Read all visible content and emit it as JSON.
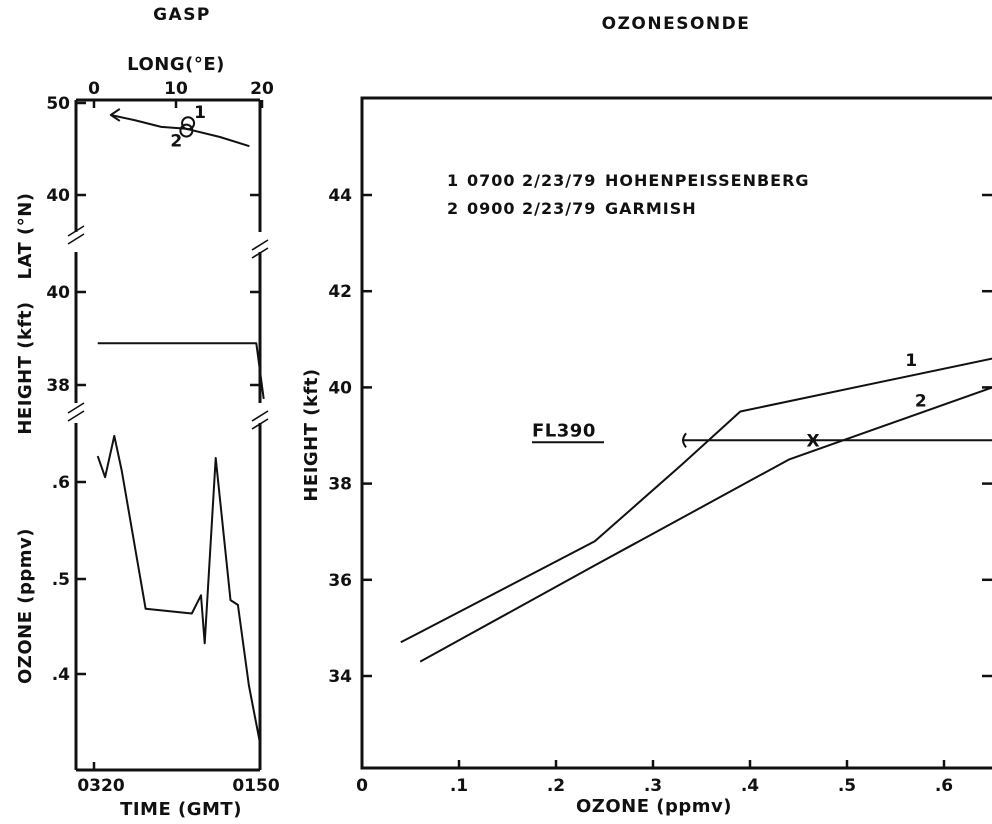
{
  "chart_data": [
    {
      "panel": "gasp",
      "title": "GASP",
      "type": "line",
      "subplots": [
        {
          "name": "position",
          "xlabel": "LONG(°E)",
          "ylabel": "LAT (°N)",
          "xlim": [
            0,
            20
          ],
          "ylim": [
            40,
            50
          ],
          "xticks": [
            "0",
            "10",
            "20"
          ],
          "yticks": [
            "50",
            "40"
          ],
          "track": {
            "x": [
              18.5,
              15,
              11,
              8,
              5,
              2
            ],
            "y": [
              45.3,
              46.3,
              47.2,
              47.4,
              48.1,
              48.7
            ]
          },
          "stations": [
            {
              "label": "1",
              "lon": 11.2,
              "lat": 47.8
            },
            {
              "label": "2",
              "lon": 11.0,
              "lat": 47.0
            }
          ]
        },
        {
          "name": "height",
          "ylabel": "HEIGHT (kft)",
          "ylim": [
            37.5,
            41
          ],
          "yticks": [
            "40",
            "38"
          ],
          "series": [
            {
              "x": [
                0.2,
                0.5,
                8.8,
                9.2
              ],
              "y": [
                38.9,
                38.9,
                38.9,
                37.7
              ]
            }
          ]
        },
        {
          "name": "ozone",
          "ylabel": "OZONE (ppmv)",
          "xlabel": "TIME (GMT)",
          "ylim": [
            0.32,
            0.67
          ],
          "yticks": [
            ".6",
            ".5",
            ".4"
          ],
          "xticks": [
            "0320",
            "0150"
          ],
          "series": [
            {
              "x": [
                0.2,
                0.6,
                1.1,
                1.5,
                2.8,
                5.3,
                5.8,
                6.0,
                6.6,
                7.4,
                7.8,
                8.4,
                9.0
              ],
              "y": [
                0.627,
                0.605,
                0.648,
                0.612,
                0.468,
                0.463,
                0.482,
                0.432,
                0.625,
                0.477,
                0.472,
                0.388,
                0.328
              ]
            }
          ]
        }
      ]
    },
    {
      "panel": "ozonesonde",
      "title": "OZONESONDE",
      "type": "line",
      "xlabel": "OZONE (ppmv)",
      "ylabel": "HEIGHT (kft)",
      "xlim": [
        0,
        0.65
      ],
      "ylim": [
        32,
        46
      ],
      "xticks": [
        0,
        0.1,
        0.2,
        0.3,
        0.4,
        0.5,
        0.6
      ],
      "xtick_labels": [
        "0",
        ".1",
        ".2",
        ".3",
        ".4",
        ".5",
        ".6"
      ],
      "yticks": [
        34,
        36,
        38,
        40,
        42,
        44
      ],
      "series": [
        {
          "name": "1",
          "x": [
            0.04,
            0.24,
            0.33,
            0.39,
            0.65
          ],
          "y": [
            34.7,
            36.8,
            38.4,
            39.5,
            40.6
          ]
        },
        {
          "name": "2",
          "x": [
            0.06,
            0.24,
            0.44,
            0.65
          ],
          "y": [
            34.3,
            36.3,
            38.5,
            40.0
          ]
        }
      ],
      "legend": [
        {
          "id": "1",
          "time": "0700",
          "date": "2/23/79",
          "site": "HOHENPEISSENBERG"
        },
        {
          "id": "2",
          "time": "0900",
          "date": "2/23/79",
          "site": "GARMISH"
        }
      ],
      "flight_level": {
        "label": "FL390",
        "height": 38.9,
        "x_start": 0.33,
        "x_end": 0.65,
        "marker_x": 0.465,
        "marker": "X"
      }
    }
  ]
}
